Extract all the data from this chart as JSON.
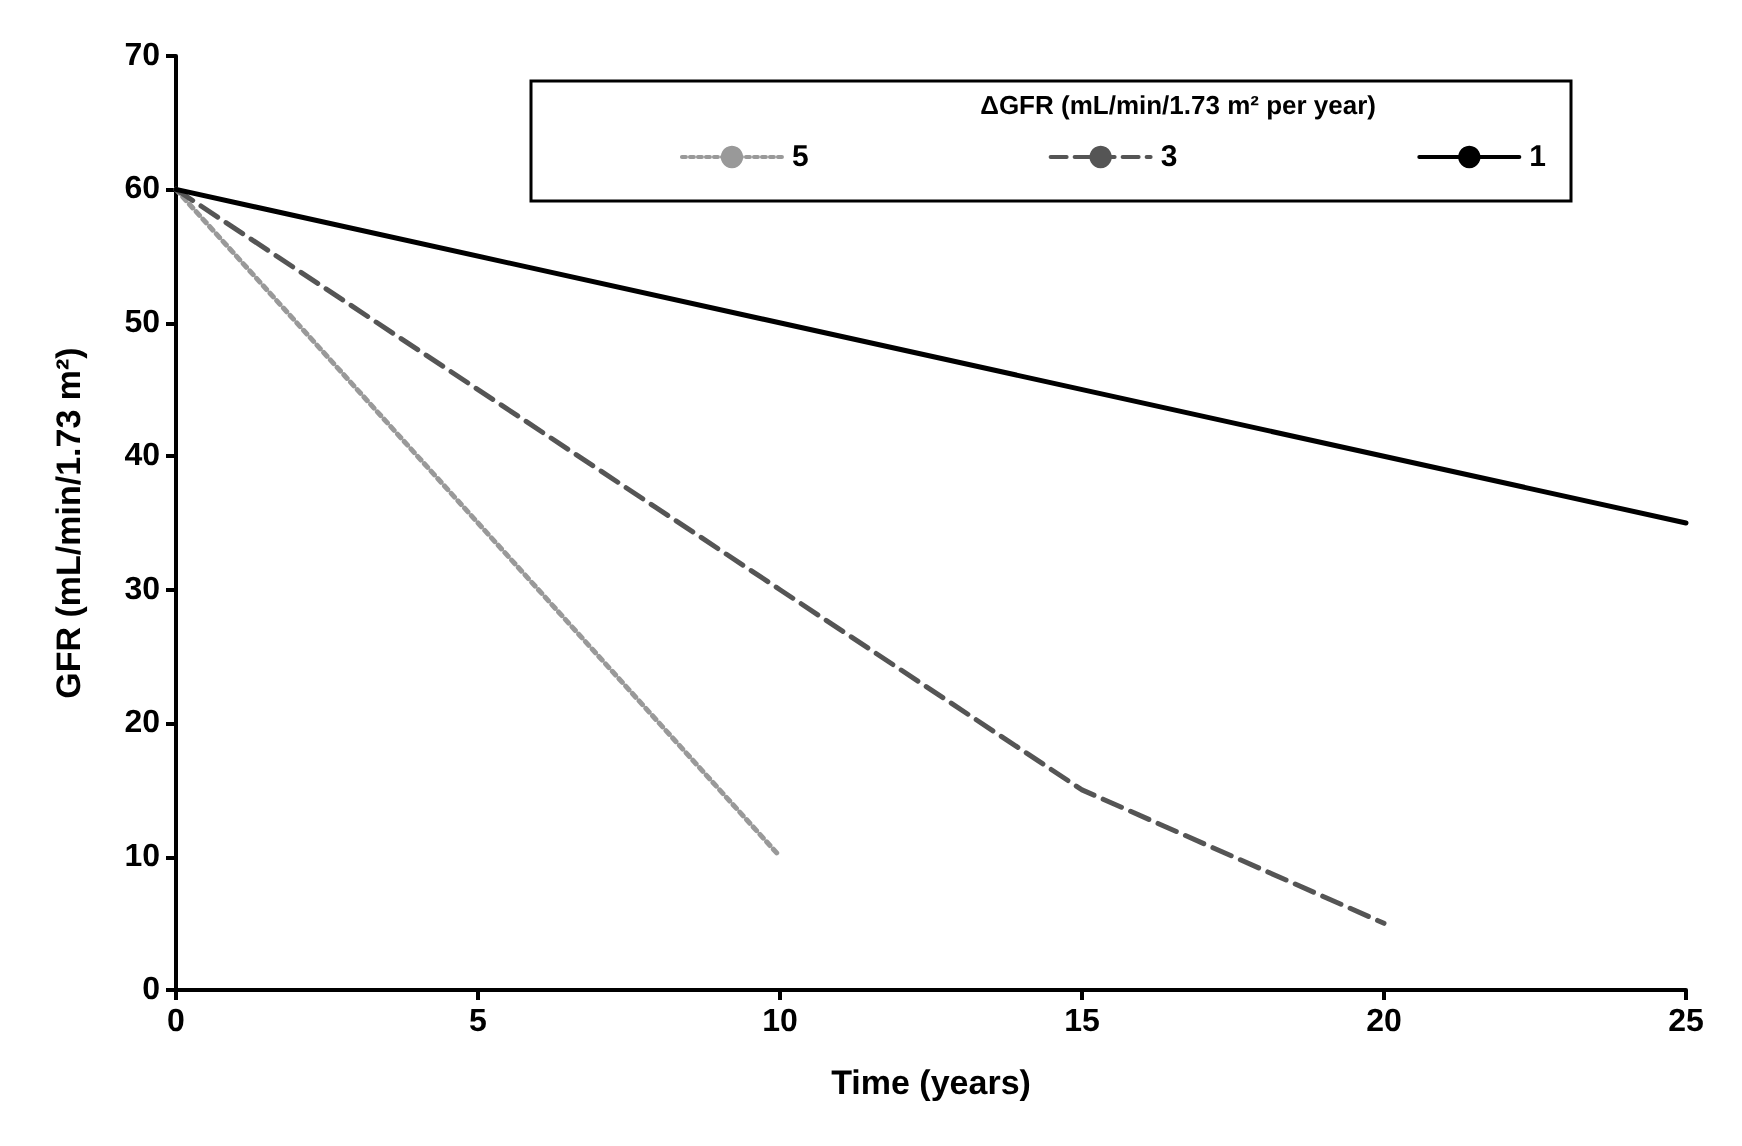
{
  "chart_data": {
    "type": "line",
    "xlabel": "Time (years)",
    "ylabel": "GFR (mL/min/1.73 m²)",
    "legend_title": "ΔGFR (mL/min/1.73 m² per year)",
    "legend": "top right",
    "grid": false,
    "marker": "none",
    "xlim": [
      0,
      25
    ],
    "xticks": [
      0,
      5,
      10,
      15,
      20,
      25
    ],
    "ylim": [
      0,
      70
    ],
    "yticks": [
      0,
      10,
      20,
      30,
      40,
      50,
      60,
      70
    ],
    "series": [
      {
        "name": "5",
        "color": "#999999",
        "line_style": "dotted",
        "x": [
          0,
          10
        ],
        "values": [
          60,
          10
        ]
      },
      {
        "name": "3",
        "color": "#555555",
        "line_style": "dashed",
        "x": [
          0,
          10,
          15,
          20
        ],
        "values": [
          60,
          30,
          15,
          5
        ]
      },
      {
        "name": "1",
        "color": "#000000",
        "line_style": "solid",
        "x": [
          0,
          25
        ],
        "values": [
          60,
          35
        ]
      }
    ]
  }
}
